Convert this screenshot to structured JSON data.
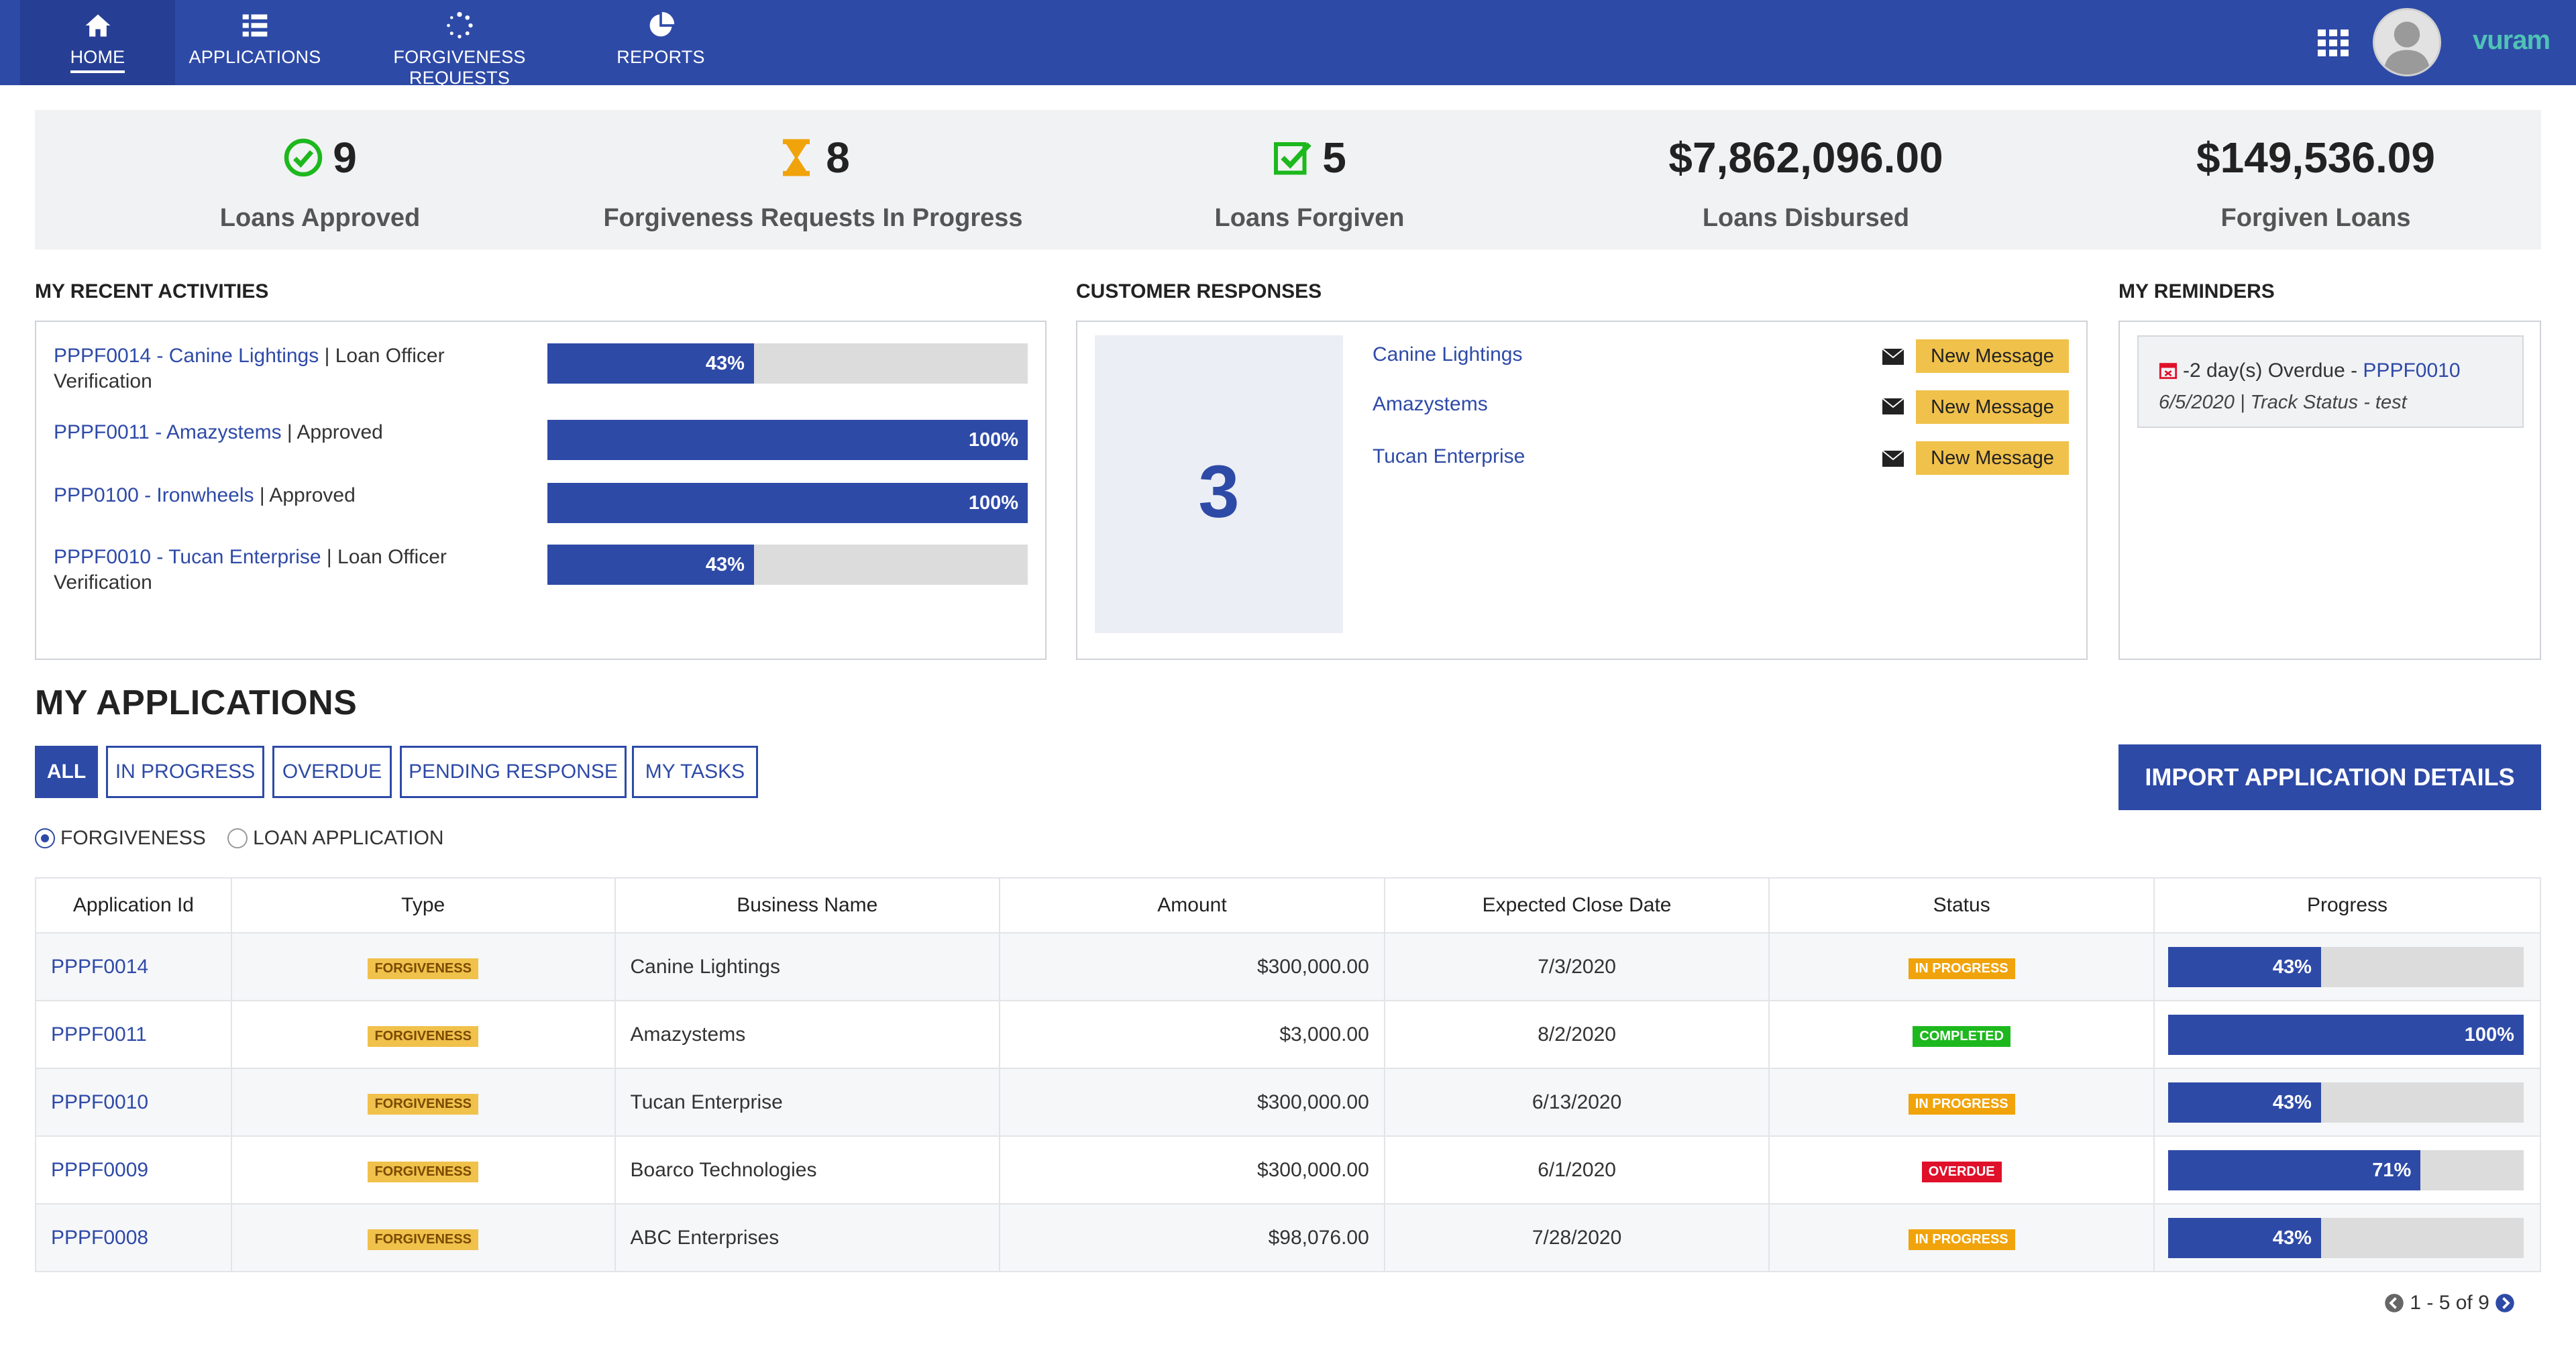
{
  "nav": {
    "home": "HOME",
    "applications": "APPLICATIONS",
    "forgiveness_requests": "FORGIVENESS REQUESTS",
    "reports": "REPORTS",
    "brand": "vuram"
  },
  "stats": [
    {
      "value": "9",
      "label": "Loans Approved"
    },
    {
      "value": "8",
      "label": "Forgiveness Requests In Progress"
    },
    {
      "value": "5",
      "label": "Loans Forgiven"
    },
    {
      "value": "$7,862,096.00",
      "label": "Loans Disbursed"
    },
    {
      "value": "$149,536.09",
      "label": "Forgiven Loans"
    }
  ],
  "activities": {
    "title": "MY RECENT ACTIVITIES",
    "items": [
      {
        "link": "PPPF0014 - Canine Lightings",
        "sep": " | ",
        "text": "Loan Officer Verification",
        "progress": 43,
        "pct": "43%"
      },
      {
        "link": "PPPF0011 -  Amazystems",
        "sep": " | ",
        "text": "Approved",
        "progress": 100,
        "pct": "100%"
      },
      {
        "link": "PPP0100 - Ironwheels",
        "sep": " | ",
        "text": "Approved",
        "progress": 100,
        "pct": "100%"
      },
      {
        "link": "PPPF0010 - Tucan Enterprise",
        "sep": " | ",
        "text": "Loan Officer Verification",
        "progress": 43,
        "pct": "43%"
      }
    ]
  },
  "responses": {
    "title": "CUSTOMER RESPONSES",
    "count": "3",
    "items": [
      {
        "name": "Canine Lightings",
        "badge": "New Message"
      },
      {
        "name": "Amazystems",
        "badge": "New Message"
      },
      {
        "name": "Tucan Enterprise",
        "badge": "New Message"
      }
    ]
  },
  "reminders": {
    "title": "MY REMINDERS",
    "line1_text": "-2 day(s) Overdue - ",
    "line1_link": "PPPF0010",
    "line2": "6/5/2020 | Track Status - test"
  },
  "applications": {
    "title": "MY APPLICATIONS",
    "filters": [
      "ALL",
      "IN PROGRESS",
      "OVERDUE",
      "PENDING RESPONSE",
      "MY TASKS"
    ],
    "import_label": "IMPORT APPLICATION DETAILS",
    "radio": [
      "FORGIVENESS",
      "LOAN APPLICATION"
    ],
    "columns": [
      "Application Id",
      "Type",
      "Business Name",
      "Amount",
      "Expected Close Date",
      "Status",
      "Progress"
    ],
    "rows": [
      {
        "id": "PPPF0014",
        "type": "FORGIVENESS",
        "name": "Canine Lightings",
        "amount": "$300,000.00",
        "date": "7/3/2020",
        "status": "IN PROGRESS",
        "progress": 43,
        "pct": "43%"
      },
      {
        "id": "PPPF0011",
        "type": "FORGIVENESS",
        "name": "Amazystems",
        "amount": "$3,000.00",
        "date": "8/2/2020",
        "status": "COMPLETED",
        "progress": 100,
        "pct": "100%"
      },
      {
        "id": "PPPF0010",
        "type": "FORGIVENESS",
        "name": "Tucan Enterprise",
        "amount": "$300,000.00",
        "date": "6/13/2020",
        "status": "IN PROGRESS",
        "progress": 43,
        "pct": "43%"
      },
      {
        "id": "PPPF0009",
        "type": "FORGIVENESS",
        "name": "Boarco Technologies",
        "amount": "$300,000.00",
        "date": "6/1/2020",
        "status": "OVERDUE",
        "progress": 71,
        "pct": "71%"
      },
      {
        "id": "PPPF0008",
        "type": "FORGIVENESS",
        "name": "ABC Enterprises",
        "amount": "$98,076.00",
        "date": "7/28/2020",
        "status": "IN PROGRESS",
        "progress": 43,
        "pct": "43%"
      }
    ],
    "pager": "1 - 5 of 9"
  },
  "colors": {
    "primary": "#2e4aa7",
    "in_progress": "#f0a30a",
    "completed": "#1db81d",
    "overdue": "#e0102a",
    "badge_yellow": "#f0c14b"
  },
  "icons": {
    "home": "home-icon",
    "applications": "list-icon",
    "forgiveness": "spinner-icon",
    "reports": "pie-chart-icon",
    "apps_grid": "grid-icon",
    "approved": "check-circle-icon",
    "in_progress": "hourglass-icon",
    "forgiven": "check-square-icon",
    "mail": "envelope-icon",
    "calendar": "calendar-icon"
  }
}
